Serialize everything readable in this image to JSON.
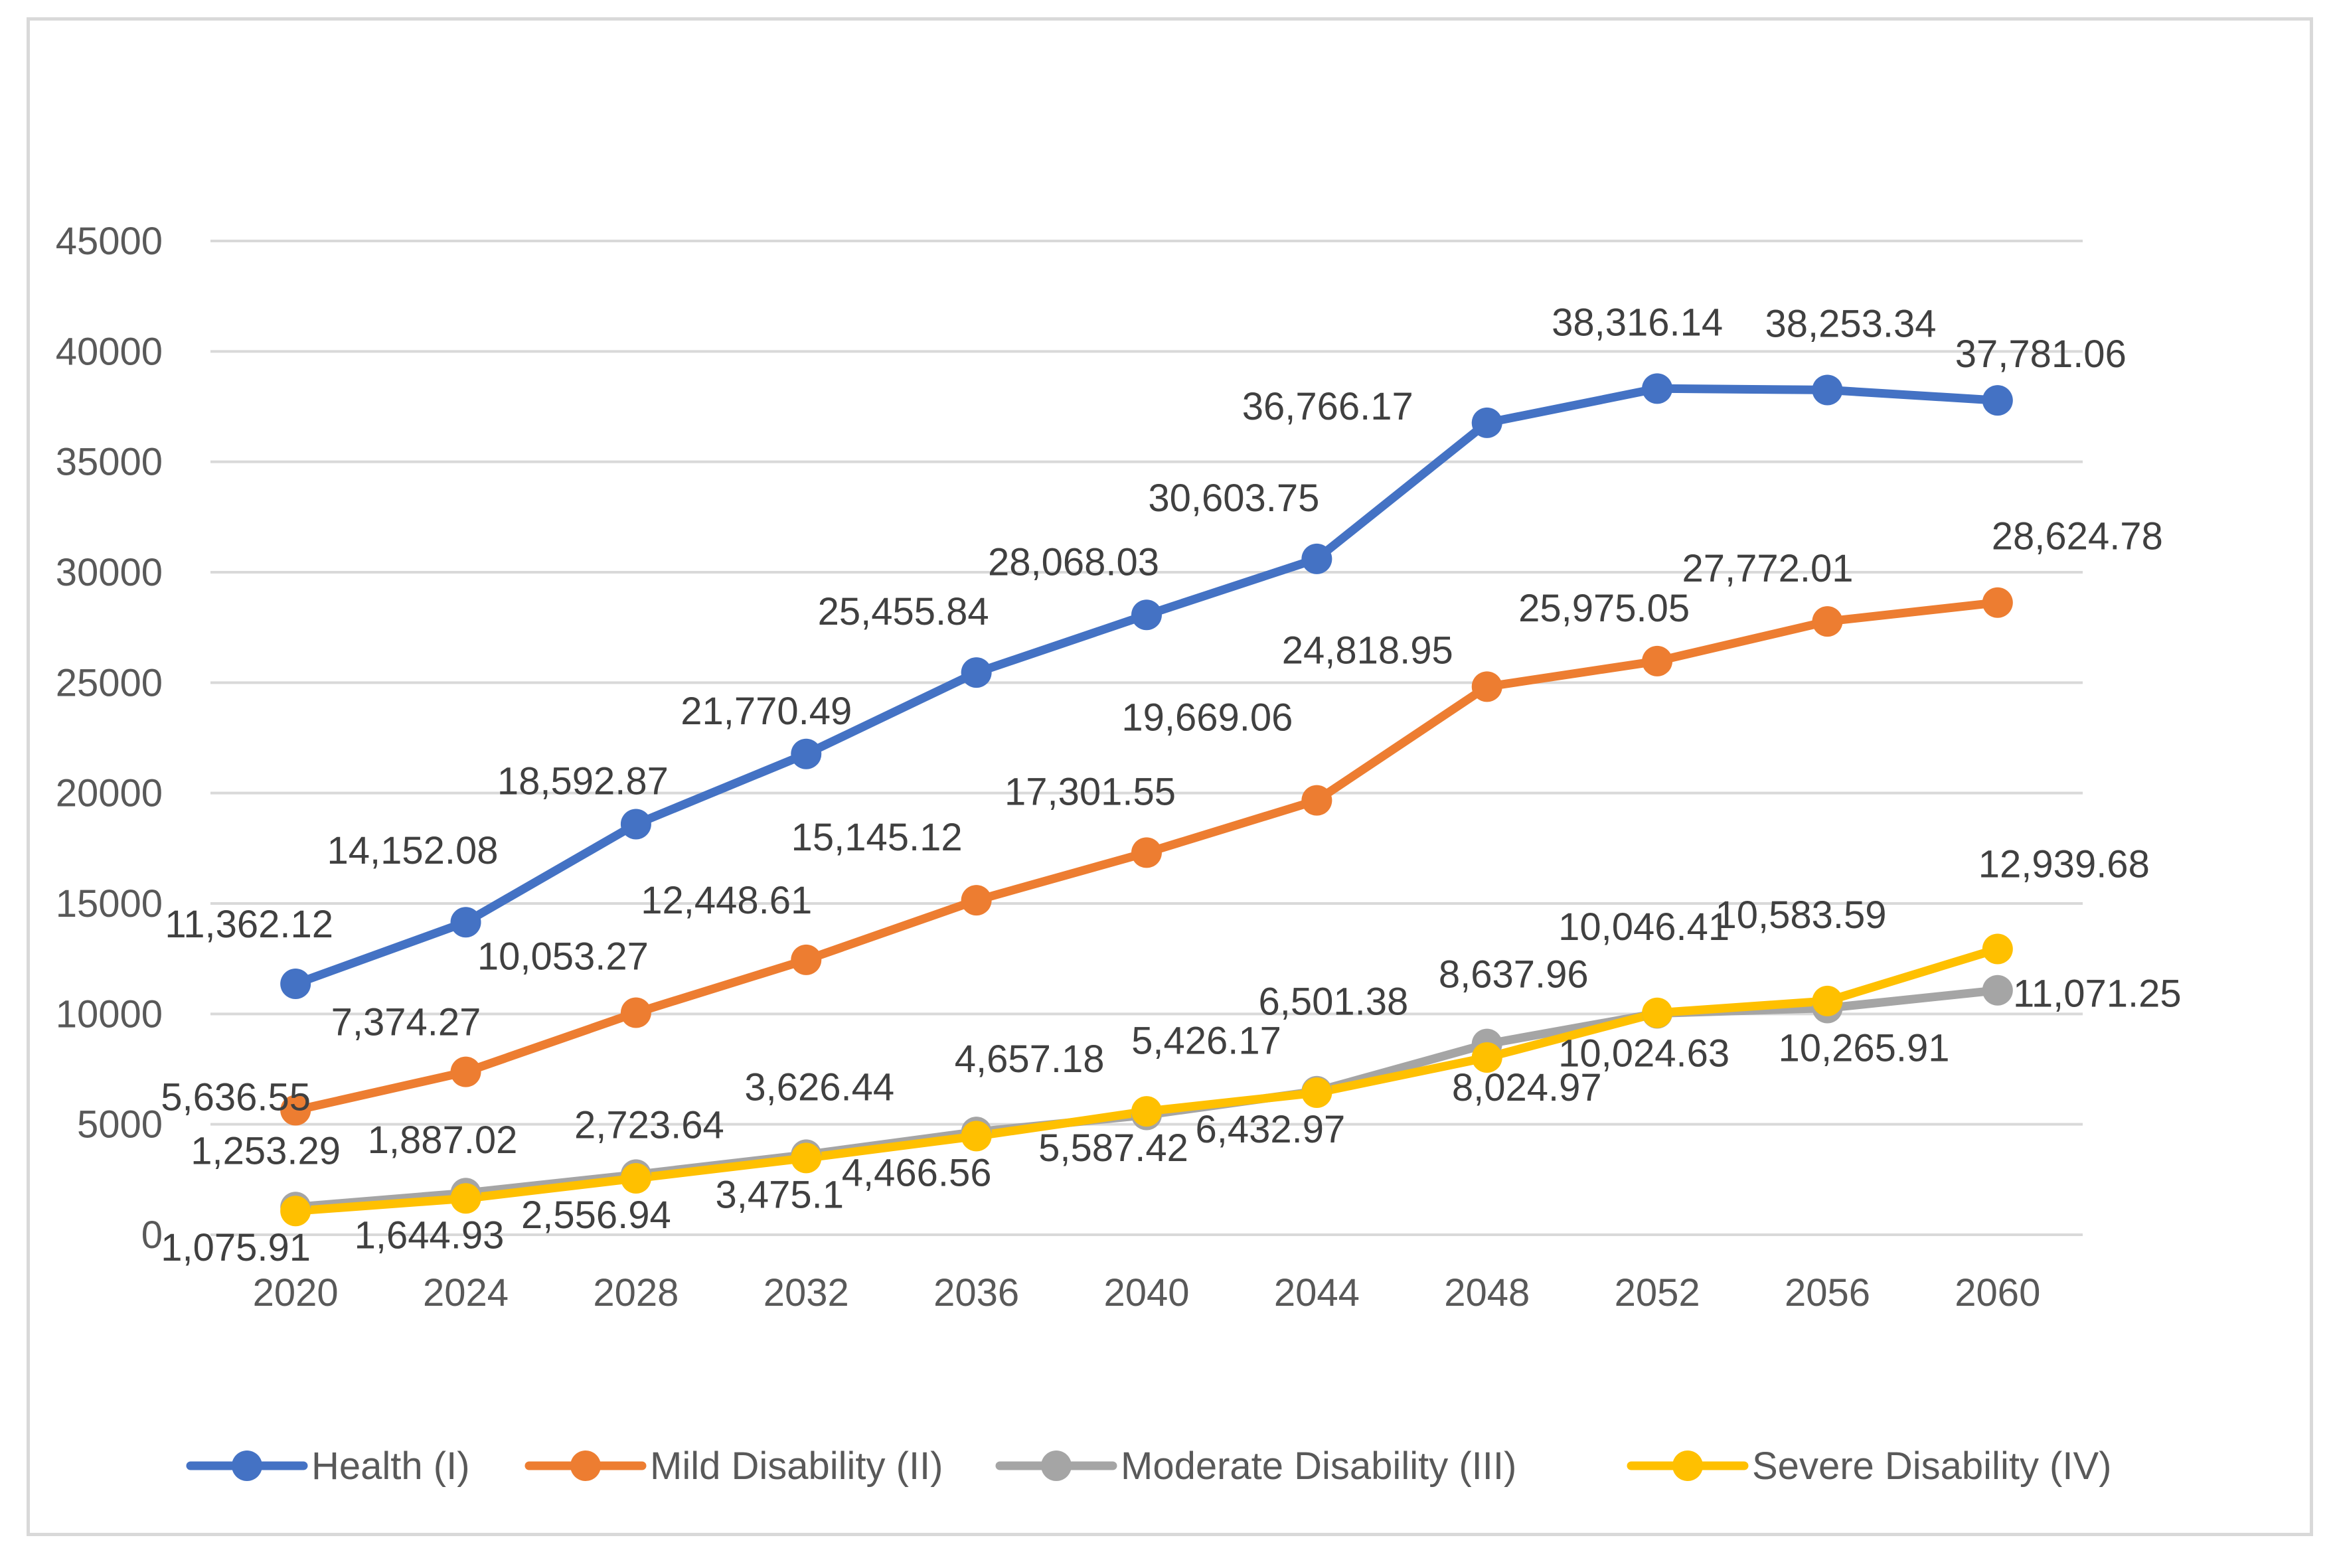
{
  "chart_data": {
    "type": "line",
    "title": "",
    "xlabel": "",
    "ylabel": "",
    "ylim": [
      0,
      45000
    ],
    "yticks": [
      0,
      5000,
      10000,
      15000,
      20000,
      25000,
      30000,
      35000,
      40000,
      45000
    ],
    "grid": true,
    "legend_position": "bottom",
    "categories": [
      "2020",
      "2024",
      "2028",
      "2032",
      "2036",
      "2040",
      "2044",
      "2048",
      "2052",
      "2056",
      "2060"
    ],
    "series": [
      {
        "name": "Health (I)",
        "color": "#4472c4",
        "values": [
          11362.12,
          14152.08,
          18592.87,
          21770.49,
          25455.84,
          28068.03,
          30603.75,
          36766.17,
          38316.14,
          38253.34,
          37781.06
        ],
        "labels": [
          "11,362.12",
          "14,152.08",
          "18,592.87",
          "21,770.49",
          "25,455.84",
          "28,068.03",
          "30,603.75",
          "36,766.17",
          "38,316.14",
          "38,253.34",
          "37,781.06"
        ]
      },
      {
        "name": "Mild Disability (II)",
        "color": "#ed7d31",
        "values": [
          5636.55,
          7374.27,
          10053.27,
          12448.61,
          15145.12,
          17301.55,
          19669.06,
          24818.95,
          25975.05,
          27772.01,
          28624.78
        ],
        "labels": [
          "5,636.55",
          "7,374.27",
          "10,053.27",
          "12,448.61",
          "15,145.12",
          "17,301.55",
          "19,669.06",
          "24,818.95",
          "25,975.05",
          "27,772.01",
          "28,624.78"
        ]
      },
      {
        "name": "Moderate Disability (III)",
        "color": "#a5a5a5",
        "values": [
          1253.29,
          1887.02,
          2723.64,
          3626.44,
          4657.18,
          5426.17,
          6501.38,
          8637.96,
          10024.63,
          10265.91,
          11071.25
        ],
        "labels": [
          "1,253.29",
          "1,887.02",
          "2,723.64",
          "3,626.44",
          "4,657.18",
          "5,426.17",
          "6,501.38",
          "8,637.96",
          "10,024.63",
          "10,265.91",
          "11,071.25"
        ]
      },
      {
        "name": "Severe Disability (IV)",
        "color": "#ffc000",
        "values": [
          1075.91,
          1644.93,
          2556.94,
          3475.1,
          4466.56,
          5587.42,
          6432.97,
          8024.97,
          10046.41,
          10583.59,
          12939.68
        ],
        "labels": [
          "1,075.91",
          "1,644.93",
          "2,556.94",
          "3,475.1",
          "4,466.56",
          "5,587.42",
          "6,432.97",
          "8,024.97",
          "10,046.41",
          "10,583.59",
          "12,939.68"
        ]
      }
    ]
  }
}
